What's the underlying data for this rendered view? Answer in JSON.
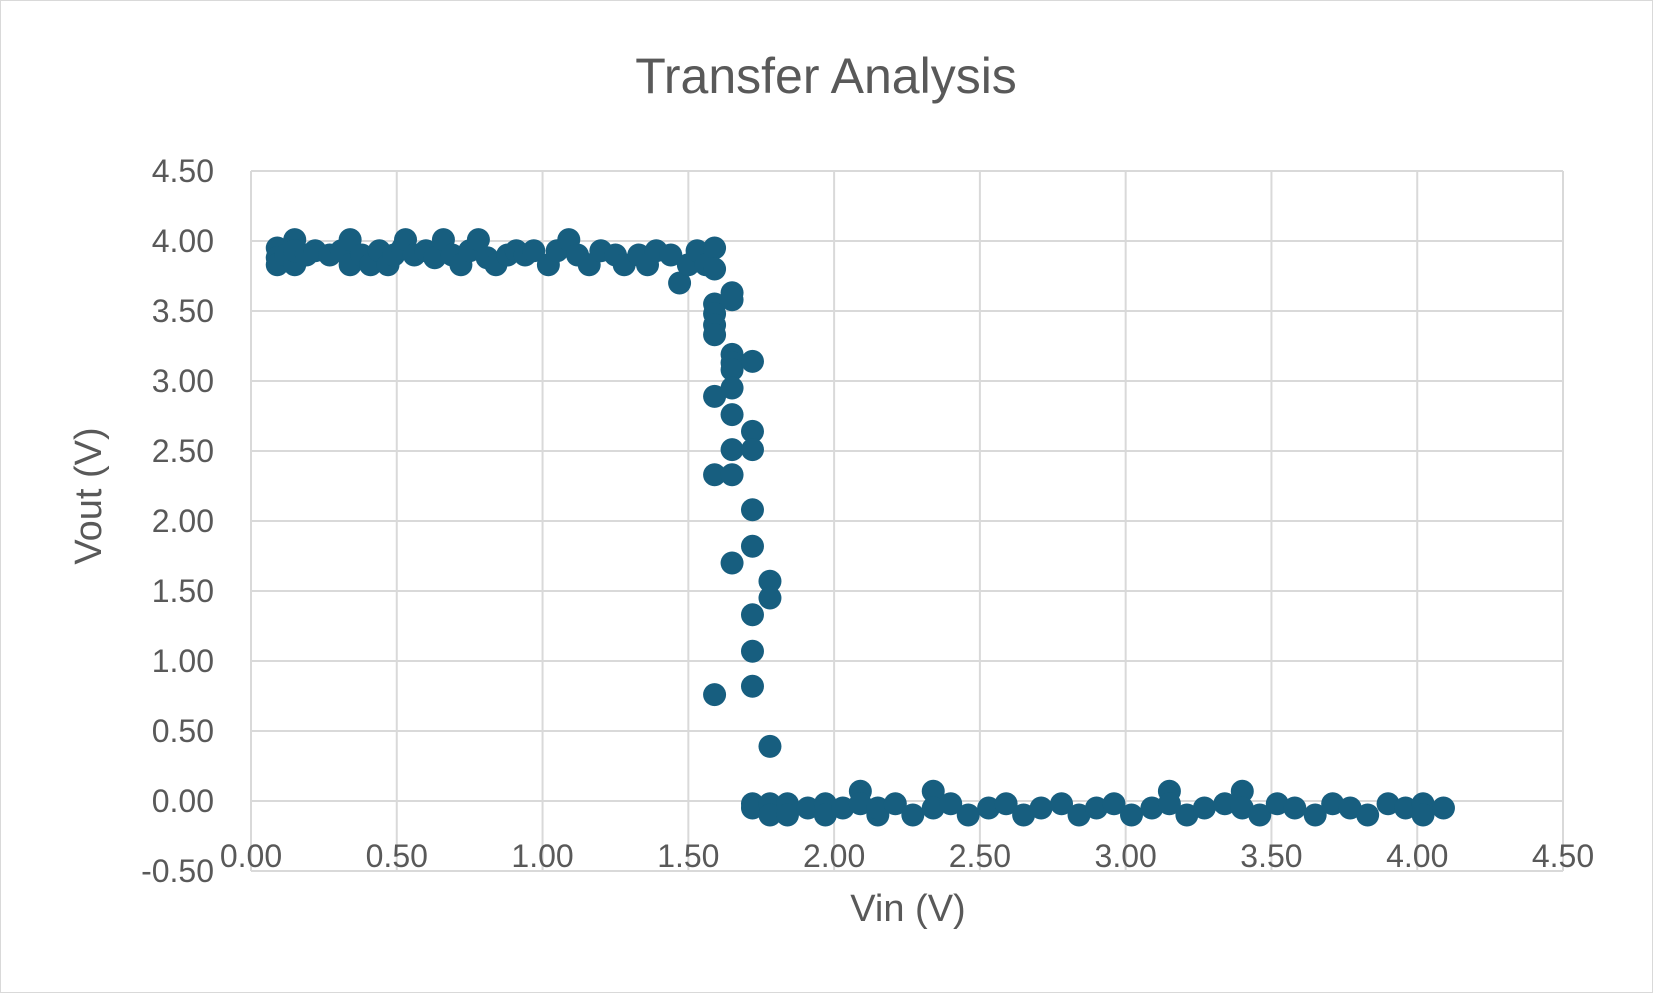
{
  "chart_data": {
    "type": "scatter",
    "title": "Transfer Analysis",
    "xlabel": "Vin (V)",
    "ylabel": "Vout (V)",
    "xlim": [
      0,
      4.5
    ],
    "ylim": [
      -0.5,
      4.5
    ],
    "x_ticks": [
      "0.00",
      "0.50",
      "1.00",
      "1.50",
      "2.00",
      "2.50",
      "3.00",
      "3.50",
      "4.00",
      "4.50"
    ],
    "y_ticks": [
      "-0.50",
      "0.00",
      "0.50",
      "1.00",
      "1.50",
      "2.00",
      "2.50",
      "3.00",
      "3.50",
      "4.00",
      "4.50"
    ],
    "grid": true,
    "legend": "none",
    "marker_color": "#175e7f",
    "series": [
      {
        "points": [
          [
            0.09,
            3.95
          ],
          [
            0.09,
            3.88
          ],
          [
            0.09,
            3.83
          ],
          [
            0.12,
            3.9
          ],
          [
            0.15,
            3.83
          ],
          [
            0.15,
            4.01
          ],
          [
            0.15,
            3.93
          ],
          [
            0.19,
            3.9
          ],
          [
            0.22,
            3.93
          ],
          [
            0.27,
            3.9
          ],
          [
            0.31,
            3.93
          ],
          [
            0.34,
            3.83
          ],
          [
            0.34,
            4.01
          ],
          [
            0.38,
            3.9
          ],
          [
            0.41,
            3.83
          ],
          [
            0.44,
            3.93
          ],
          [
            0.47,
            3.83
          ],
          [
            0.49,
            3.9
          ],
          [
            0.52,
            3.95
          ],
          [
            0.53,
            4.01
          ],
          [
            0.56,
            3.9
          ],
          [
            0.6,
            3.93
          ],
          [
            0.63,
            3.88
          ],
          [
            0.66,
            4.01
          ],
          [
            0.69,
            3.9
          ],
          [
            0.72,
            3.83
          ],
          [
            0.75,
            3.93
          ],
          [
            0.78,
            4.01
          ],
          [
            0.81,
            3.88
          ],
          [
            0.84,
            3.83
          ],
          [
            0.88,
            3.9
          ],
          [
            0.91,
            3.93
          ],
          [
            0.94,
            3.9
          ],
          [
            0.97,
            3.93
          ],
          [
            1.02,
            3.83
          ],
          [
            1.05,
            3.93
          ],
          [
            1.09,
            4.01
          ],
          [
            1.12,
            3.9
          ],
          [
            1.16,
            3.83
          ],
          [
            1.2,
            3.93
          ],
          [
            1.25,
            3.9
          ],
          [
            1.28,
            3.83
          ],
          [
            1.33,
            3.9
          ],
          [
            1.36,
            3.83
          ],
          [
            1.39,
            3.93
          ],
          [
            1.44,
            3.9
          ],
          [
            1.47,
            3.7
          ],
          [
            1.5,
            3.83
          ],
          [
            1.53,
            3.93
          ],
          [
            1.56,
            3.83
          ],
          [
            1.59,
            3.95
          ],
          [
            1.59,
            3.8
          ],
          [
            1.59,
            3.55
          ],
          [
            1.59,
            3.48
          ],
          [
            1.59,
            3.4
          ],
          [
            1.59,
            3.33
          ],
          [
            1.59,
            2.89
          ],
          [
            1.59,
            2.33
          ],
          [
            1.59,
            0.76
          ],
          [
            1.65,
            3.63
          ],
          [
            1.65,
            3.58
          ],
          [
            1.65,
            3.19
          ],
          [
            1.65,
            3.13
          ],
          [
            1.65,
            3.08
          ],
          [
            1.65,
            2.95
          ],
          [
            1.65,
            2.76
          ],
          [
            1.65,
            2.51
          ],
          [
            1.65,
            2.33
          ],
          [
            1.65,
            1.7
          ],
          [
            1.72,
            3.14
          ],
          [
            1.72,
            2.64
          ],
          [
            1.72,
            2.51
          ],
          [
            1.72,
            2.08
          ],
          [
            1.72,
            1.82
          ],
          [
            1.72,
            1.33
          ],
          [
            1.72,
            1.07
          ],
          [
            1.72,
            0.82
          ],
          [
            1.72,
            -0.02
          ],
          [
            1.72,
            -0.05
          ],
          [
            1.78,
            1.57
          ],
          [
            1.78,
            1.45
          ],
          [
            1.78,
            0.39
          ],
          [
            1.78,
            -0.02
          ],
          [
            1.78,
            -0.1
          ],
          [
            1.84,
            -0.02
          ],
          [
            1.84,
            -0.1
          ],
          [
            1.91,
            -0.05
          ],
          [
            1.97,
            -0.02
          ],
          [
            1.97,
            -0.1
          ],
          [
            2.03,
            -0.05
          ],
          [
            2.09,
            0.07
          ],
          [
            2.09,
            -0.02
          ],
          [
            2.15,
            -0.1
          ],
          [
            2.15,
            -0.05
          ],
          [
            2.21,
            -0.02
          ],
          [
            2.27,
            -0.1
          ],
          [
            2.34,
            0.07
          ],
          [
            2.34,
            -0.05
          ],
          [
            2.4,
            -0.02
          ],
          [
            2.46,
            -0.1
          ],
          [
            2.53,
            -0.05
          ],
          [
            2.59,
            -0.02
          ],
          [
            2.65,
            -0.1
          ],
          [
            2.71,
            -0.05
          ],
          [
            2.78,
            -0.02
          ],
          [
            2.84,
            -0.1
          ],
          [
            2.9,
            -0.05
          ],
          [
            2.96,
            -0.02
          ],
          [
            3.02,
            -0.1
          ],
          [
            3.09,
            -0.05
          ],
          [
            3.15,
            0.07
          ],
          [
            3.15,
            -0.02
          ],
          [
            3.21,
            -0.1
          ],
          [
            3.27,
            -0.05
          ],
          [
            3.34,
            -0.02
          ],
          [
            3.4,
            0.07
          ],
          [
            3.4,
            -0.05
          ],
          [
            3.46,
            -0.1
          ],
          [
            3.52,
            -0.02
          ],
          [
            3.58,
            -0.05
          ],
          [
            3.65,
            -0.1
          ],
          [
            3.71,
            -0.02
          ],
          [
            3.77,
            -0.05
          ],
          [
            3.83,
            -0.1
          ],
          [
            3.9,
            -0.02
          ],
          [
            3.96,
            -0.05
          ],
          [
            4.02,
            -0.02
          ],
          [
            4.02,
            -0.1
          ],
          [
            4.09,
            -0.05
          ]
        ]
      }
    ]
  }
}
